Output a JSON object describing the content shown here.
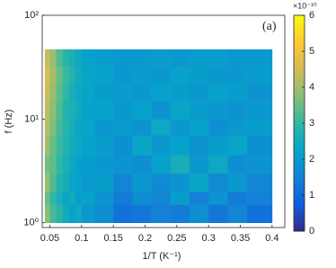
{
  "chart_data": {
    "type": "heatmap",
    "x_label": "1/T (K⁻¹)",
    "y_label": "f (Hz)",
    "annotation": "(a)",
    "x_bins": [
      0.042,
      0.05,
      0.06,
      0.07,
      0.08,
      0.09,
      0.1,
      0.12,
      0.15,
      0.18,
      0.21,
      0.24,
      0.27,
      0.3,
      0.33,
      0.36,
      0.4
    ],
    "y_bins": [
      1,
      1.5,
      2,
      3,
      4.5,
      7,
      10,
      15,
      22,
      32,
      47
    ],
    "values": [
      [
        3.8,
        3.2,
        2.9,
        2.5,
        2.2,
        2.4,
        2.0,
        1.8,
        1.2,
        1.3,
        1.5,
        1.4,
        1.8,
        1.3,
        1.6,
        1.2
      ],
      [
        3.5,
        3.0,
        2.6,
        2.3,
        2.5,
        2.1,
        2.2,
        1.9,
        1.4,
        1.8,
        1.6,
        2.1,
        1.5,
        1.9,
        1.4,
        1.5
      ],
      [
        3.9,
        3.3,
        2.8,
        2.6,
        2.3,
        2.2,
        2.0,
        2.1,
        1.6,
        2.0,
        1.7,
        1.9,
        2.3,
        1.7,
        2.0,
        1.6
      ],
      [
        3.6,
        3.4,
        3.0,
        2.7,
        2.4,
        2.2,
        2.1,
        2.0,
        1.9,
        1.8,
        2.2,
        2.6,
        2.0,
        2.4,
        1.8,
        1.9
      ],
      [
        4.0,
        3.5,
        3.1,
        2.8,
        2.5,
        2.4,
        2.2,
        2.1,
        1.8,
        2.3,
        2.0,
        2.2,
        1.9,
        2.1,
        2.3,
        1.8
      ],
      [
        4.2,
        3.7,
        3.2,
        2.9,
        2.6,
        2.3,
        2.3,
        2.0,
        2.1,
        1.9,
        2.4,
        2.0,
        2.2,
        1.8,
        2.0,
        2.1
      ],
      [
        4.3,
        3.8,
        3.3,
        2.8,
        2.7,
        2.5,
        2.2,
        2.2,
        2.0,
        2.2,
        1.9,
        2.3,
        2.1,
        2.0,
        1.9,
        2.0
      ],
      [
        4.5,
        3.9,
        3.4,
        3.0,
        2.6,
        2.4,
        2.3,
        2.1,
        2.1,
        2.0,
        2.2,
        2.1,
        2.0,
        2.2,
        2.1,
        1.9
      ],
      [
        4.6,
        4.0,
        3.5,
        3.1,
        2.8,
        2.5,
        2.3,
        2.2,
        2.0,
        2.1,
        2.0,
        2.2,
        2.1,
        2.0,
        2.0,
        2.1
      ],
      [
        4.4,
        3.9,
        3.3,
        2.9,
        2.7,
        2.4,
        2.2,
        2.1,
        2.0,
        2.0,
        2.1,
        2.0,
        2.1,
        2.1,
        2.0,
        2.0
      ]
    ],
    "xlim": [
      0.038,
      0.42
    ],
    "xticks": [
      0.05,
      0.1,
      0.15,
      0.2,
      0.25,
      0.3,
      0.35,
      0.4
    ],
    "log_y": true,
    "ylim": [
      0.9,
      100
    ],
    "yticks": [
      {
        "value": 1,
        "label": "10⁰"
      },
      {
        "value": 10,
        "label": "10¹"
      },
      {
        "value": 100,
        "label": "10²"
      }
    ],
    "colormap": [
      "#352a87",
      "#0f5cdd",
      "#1481d6",
      "#06a4ca",
      "#2eb7a4",
      "#87bf77",
      "#d1bb59",
      "#fec832",
      "#f9fb0e"
    ],
    "clim": [
      0,
      6
    ],
    "colorbar_ticks": [
      0,
      1,
      2,
      3,
      4,
      5,
      6
    ],
    "colorbar_exponent_label": "×10⁻¹⁰"
  }
}
